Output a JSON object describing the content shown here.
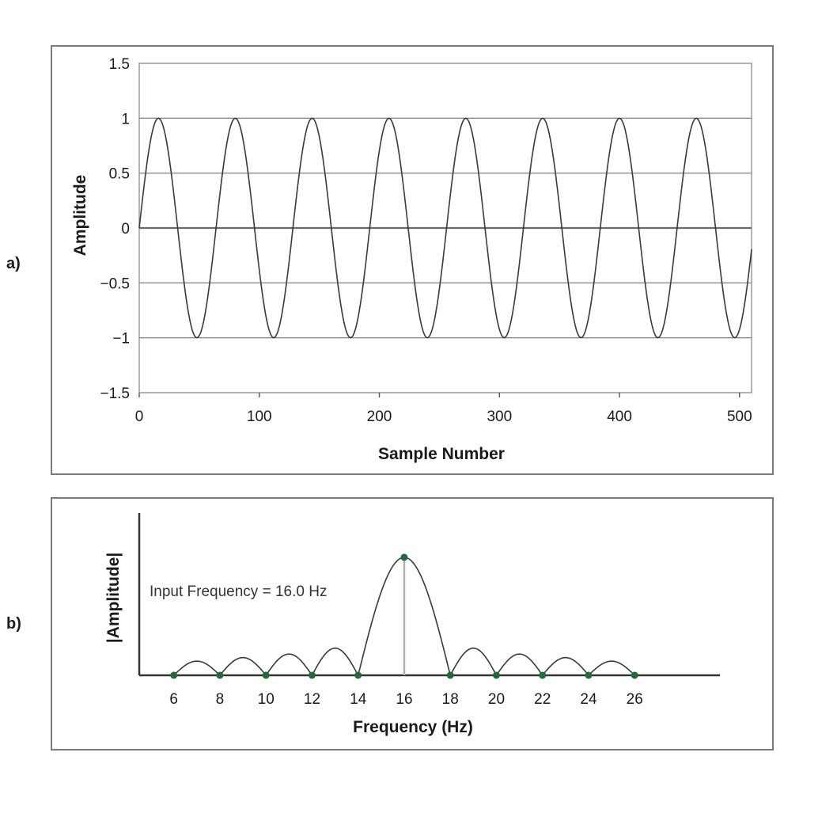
{
  "panels": [
    {
      "label": "a)"
    },
    {
      "label": "b)"
    }
  ],
  "colors": {
    "frame": "#7a7a7a",
    "gridline": "#8c8c8c",
    "zero_line": "#6a6a6a",
    "curve": "#3a3a3a",
    "marker": "#1f6b3a",
    "stem": "#b0b0b0"
  },
  "chart_data": [
    {
      "type": "line",
      "title": "",
      "xlabel": "Sample Number",
      "ylabel": "Amplitude",
      "xlim": [
        0,
        510
      ],
      "ylim": [
        -1.5,
        1.5
      ],
      "x_ticks": [
        0,
        100,
        200,
        300,
        400,
        500
      ],
      "y_ticks": [
        -1.5,
        -1,
        -0.5,
        0,
        0.5,
        1,
        1.5
      ],
      "y_tick_labels": [
        "−1.5",
        "−1",
        "−0.5",
        "0",
        "0.5",
        "1",
        "1.5"
      ],
      "grid": "horizontal",
      "series": [
        {
          "function": "sine",
          "amplitude": 1,
          "cycles_per_512_samples": 8,
          "x_range": [
            0,
            510
          ]
        }
      ]
    },
    {
      "type": "line",
      "title": "",
      "xlabel": "Frequency (Hz)",
      "ylabel": "|Amplitude|",
      "x_ticks": [
        6,
        8,
        10,
        12,
        14,
        16,
        18,
        20,
        22,
        24,
        26
      ],
      "xlim": [
        4.5,
        29.7
      ],
      "annotation": "Input Frequency = 16.0 Hz",
      "input_frequency": 16.0,
      "lobes": [
        {
          "from": 6,
          "to": 8,
          "peak": 0.12
        },
        {
          "from": 8,
          "to": 10,
          "peak": 0.15
        },
        {
          "from": 10,
          "to": 12,
          "peak": 0.18
        },
        {
          "from": 12,
          "to": 14,
          "peak": 0.23
        },
        {
          "from": 14,
          "to": 18,
          "peak": 1.0
        },
        {
          "from": 18,
          "to": 20,
          "peak": 0.23
        },
        {
          "from": 20,
          "to": 22,
          "peak": 0.18
        },
        {
          "from": 22,
          "to": 24,
          "peak": 0.15
        },
        {
          "from": 24,
          "to": 26,
          "peak": 0.12
        }
      ],
      "sample_points": [
        {
          "x": 6,
          "y": 0
        },
        {
          "x": 8,
          "y": 0
        },
        {
          "x": 10,
          "y": 0
        },
        {
          "x": 12,
          "y": 0
        },
        {
          "x": 14,
          "y": 0
        },
        {
          "x": 16,
          "y": 1.0
        },
        {
          "x": 18,
          "y": 0
        },
        {
          "x": 20,
          "y": 0
        },
        {
          "x": 22,
          "y": 0
        },
        {
          "x": 24,
          "y": 0
        },
        {
          "x": 26,
          "y": 0
        }
      ]
    }
  ]
}
